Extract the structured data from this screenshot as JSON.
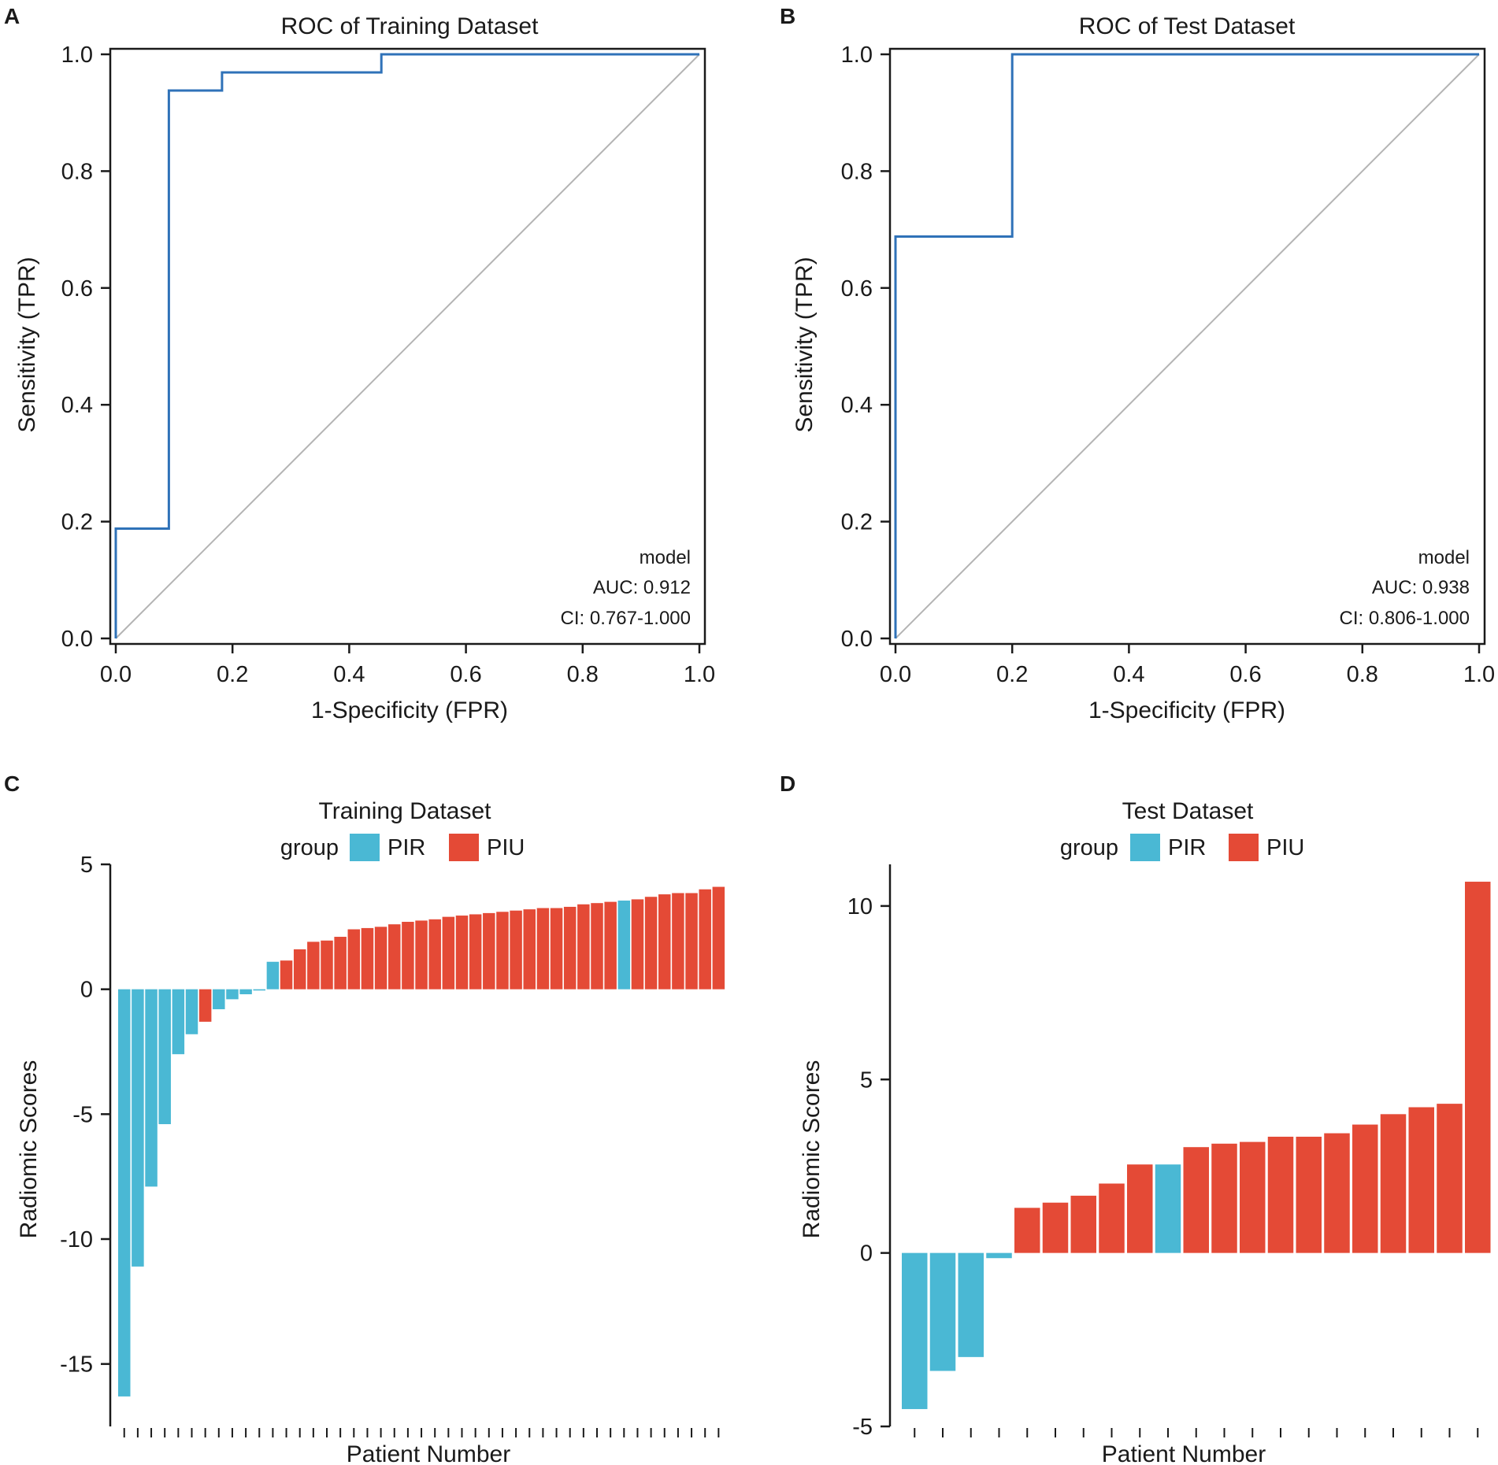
{
  "colors": {
    "pir": "#4ab8d4",
    "piu": "#e44a36",
    "roc_line": "#2f72b8",
    "diagonal": "#b4b4b4",
    "axis": "#1a1a1a"
  },
  "chart_data": [
    {
      "panel": "A",
      "type": "line",
      "title": "ROC of Training Dataset",
      "xlabel": "1-Specificity (FPR)",
      "ylabel": "Sensitivity (TPR)",
      "xlim": [
        0,
        1
      ],
      "ylim": [
        0,
        1
      ],
      "xticks": [
        "0.0",
        "0.2",
        "0.4",
        "0.6",
        "0.8",
        "1.0"
      ],
      "yticks": [
        "0.0",
        "0.2",
        "0.4",
        "0.6",
        "0.8",
        "1.0"
      ],
      "grid": false,
      "series": [
        {
          "name": "model",
          "x": [
            0,
            0,
            0.091,
            0.091,
            0.182,
            0.182,
            0.455,
            0.455,
            1.0
          ],
          "y": [
            0,
            0.188,
            0.188,
            0.938,
            0.938,
            0.969,
            0.969,
            1.0,
            1.0
          ]
        }
      ],
      "reference_line": "diagonal",
      "annotations": [
        "model",
        "AUC: 0.912",
        "CI: 0.767-1.000"
      ],
      "annotation_position": "bottom-right"
    },
    {
      "panel": "B",
      "type": "line",
      "title": "ROC of Test Dataset",
      "xlabel": "1-Specificity (FPR)",
      "ylabel": "Sensitivity (TPR)",
      "xlim": [
        0,
        1
      ],
      "ylim": [
        0,
        1
      ],
      "xticks": [
        "0.0",
        "0.2",
        "0.4",
        "0.6",
        "0.8",
        "1.0"
      ],
      "yticks": [
        "0.0",
        "0.2",
        "0.4",
        "0.6",
        "0.8",
        "1.0"
      ],
      "grid": false,
      "series": [
        {
          "name": "model",
          "x": [
            0,
            0,
            0.2,
            0.2,
            1.0
          ],
          "y": [
            0,
            0.688,
            0.688,
            1.0,
            1.0
          ]
        }
      ],
      "reference_line": "diagonal",
      "annotations": [
        "model",
        "AUC: 0.938",
        "CI: 0.806-1.000"
      ],
      "annotation_position": "bottom-right"
    },
    {
      "panel": "C",
      "type": "bar",
      "title": "Training Dataset",
      "xlabel": "Patient Number",
      "ylabel": "Radiomic Scores",
      "ylim": [
        -17.5,
        5
      ],
      "yticks": [
        5,
        0,
        -5,
        -10,
        -15
      ],
      "legend": {
        "title": "group",
        "entries": [
          "PIR",
          "PIU"
        ],
        "position": "top"
      },
      "values": [
        -16.3,
        -11.1,
        -7.9,
        -5.4,
        -2.6,
        -1.8,
        -1.3,
        -0.8,
        -0.4,
        -0.2,
        -0.05,
        1.1,
        1.15,
        1.6,
        1.9,
        1.95,
        2.1,
        2.4,
        2.45,
        2.5,
        2.6,
        2.7,
        2.75,
        2.8,
        2.9,
        2.95,
        3.0,
        3.05,
        3.1,
        3.15,
        3.2,
        3.25,
        3.25,
        3.3,
        3.4,
        3.45,
        3.5,
        3.55,
        3.6,
        3.7,
        3.8,
        3.85,
        3.85,
        4.0,
        4.1
      ],
      "groups": [
        "PIR",
        "PIR",
        "PIR",
        "PIR",
        "PIR",
        "PIR",
        "PIU",
        "PIR",
        "PIR",
        "PIR",
        "PIR",
        "PIR",
        "PIU",
        "PIU",
        "PIU",
        "PIU",
        "PIU",
        "PIU",
        "PIU",
        "PIU",
        "PIU",
        "PIU",
        "PIU",
        "PIU",
        "PIU",
        "PIU",
        "PIU",
        "PIU",
        "PIU",
        "PIU",
        "PIU",
        "PIU",
        "PIU",
        "PIU",
        "PIU",
        "PIU",
        "PIU",
        "PIR",
        "PIU",
        "PIU",
        "PIU",
        "PIU",
        "PIU",
        "PIU",
        "PIU"
      ]
    },
    {
      "panel": "D",
      "type": "bar",
      "title": "Test Dataset",
      "xlabel": "Patient Number",
      "ylabel": "Radiomic Scores",
      "ylim": [
        -5,
        11.2
      ],
      "yticks": [
        10,
        5,
        0,
        -5
      ],
      "legend": {
        "title": "group",
        "entries": [
          "PIR",
          "PIU"
        ],
        "position": "top"
      },
      "values": [
        -4.5,
        -3.4,
        -3.0,
        -0.15,
        1.3,
        1.45,
        1.65,
        2.0,
        2.55,
        2.55,
        3.05,
        3.15,
        3.2,
        3.35,
        3.35,
        3.45,
        3.7,
        4.0,
        4.2,
        4.3,
        10.7
      ],
      "groups": [
        "PIR",
        "PIR",
        "PIR",
        "PIR",
        "PIU",
        "PIU",
        "PIU",
        "PIU",
        "PIU",
        "PIR",
        "PIU",
        "PIU",
        "PIU",
        "PIU",
        "PIU",
        "PIU",
        "PIU",
        "PIU",
        "PIU",
        "PIU",
        "PIU"
      ]
    }
  ]
}
